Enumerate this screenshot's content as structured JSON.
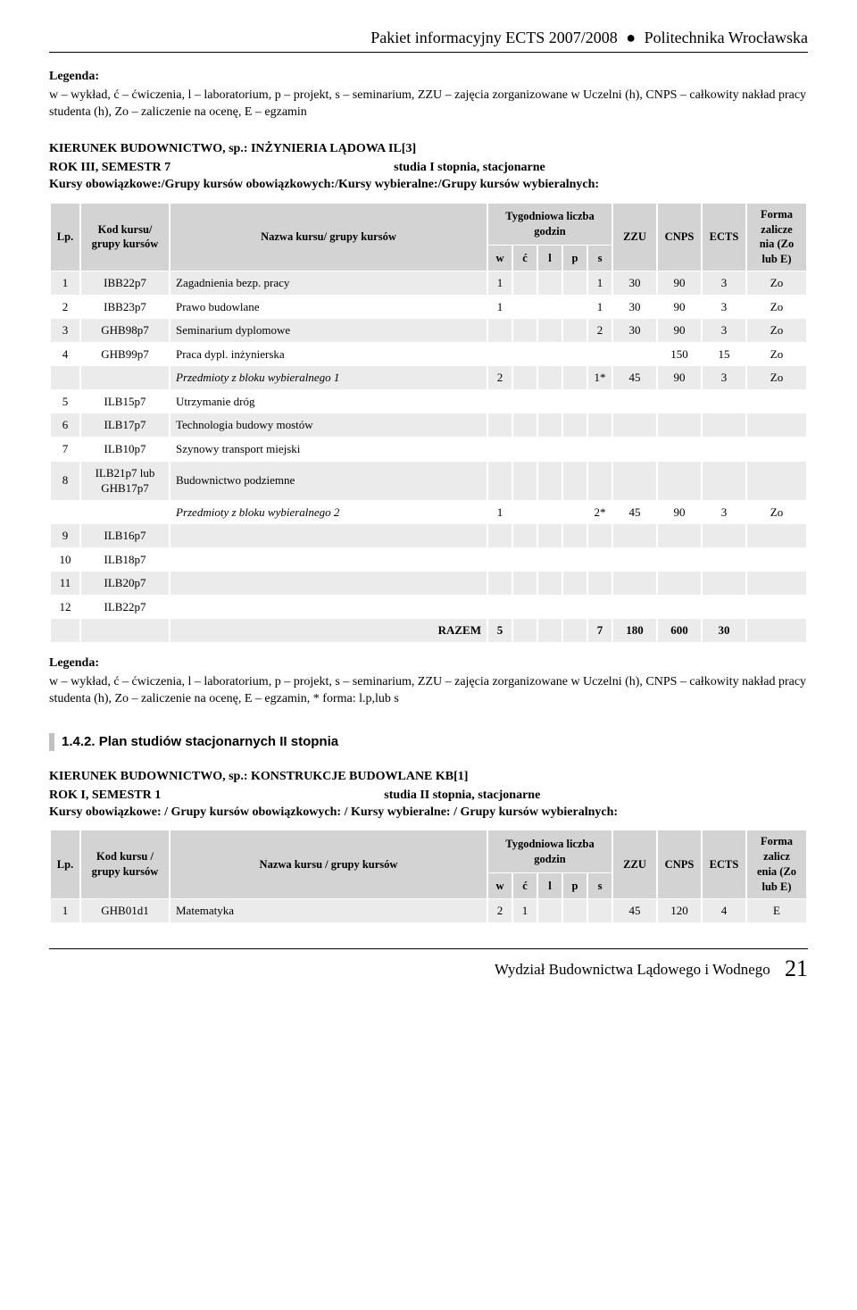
{
  "header": {
    "left": "Pakiet informacyjny ECTS 2007/2008",
    "bullet": "●",
    "right": "Politechnika Wrocławska"
  },
  "legend1": {
    "title": "Legenda:",
    "text": "w – wykład, ć – ćwiczenia, l – laboratorium, p – projekt, s – seminarium, ZZU – zajęcia zorganizowane w Uczelni (h), CNPS – całkowity nakład pracy studenta (h), Zo – zaliczenie na ocenę, E – egzamin"
  },
  "block1": {
    "kier": "KIERUNEK BUDOWNICTWO, sp.: INŻYNIERIA LĄDOWA IL[3]",
    "rok": "ROK III, SEMESTR 7",
    "studia": "studia I stopnia, stacjonarne",
    "kursy": "Kursy obowiązkowe:/Grupy kursów obowiązkowych:/Kursy wybieralne:/Grupy kursów wybieralnych:"
  },
  "table1": {
    "headers": {
      "lp": "Lp.",
      "kod": "Kod kursu/ grupy kursów",
      "name": "Nazwa kursu/ grupy kursów",
      "tyg": "Tygodniowa liczba godzin",
      "w": "w",
      "c": "ć",
      "l": "l",
      "p": "p",
      "s": "s",
      "zzu": "ZZU",
      "cnps": "CNPS",
      "ects": "ECTS",
      "forma": "Forma zalicze nia (Zo lub E)"
    },
    "rows": [
      {
        "lp": "1",
        "kod": "IBB22p7",
        "name": "Zagadnienia bezp. pracy",
        "w": "1",
        "c": "",
        "l": "",
        "p": "",
        "s": "1",
        "zzu": "30",
        "cnps": "90",
        "ects": "3",
        "forma": "Zo"
      },
      {
        "lp": "2",
        "kod": "IBB23p7",
        "name": "Prawo budowlane",
        "w": "1",
        "c": "",
        "l": "",
        "p": "",
        "s": "1",
        "zzu": "30",
        "cnps": "90",
        "ects": "3",
        "forma": "Zo"
      },
      {
        "lp": "3",
        "kod": "GHB98p7",
        "name": "Seminarium dyplomowe",
        "w": "",
        "c": "",
        "l": "",
        "p": "",
        "s": "2",
        "zzu": "30",
        "cnps": "90",
        "ects": "3",
        "forma": "Zo"
      },
      {
        "lp": "4",
        "kod": "GHB99p7",
        "name": "Praca dypl. inżynierska",
        "w": "",
        "c": "",
        "l": "",
        "p": "",
        "s": "",
        "zzu": "",
        "cnps": "150",
        "ects": "15",
        "forma": "Zo"
      },
      {
        "lp": "",
        "kod": "",
        "name": "Przedmioty z bloku wybieralnego 1",
        "italic": true,
        "w": "2",
        "c": "",
        "l": "",
        "p": "",
        "s": "1*",
        "zzu": "45",
        "cnps": "90",
        "ects": "3",
        "forma": "Zo"
      },
      {
        "lp": "5",
        "kod": "ILB15p7",
        "name": "Utrzymanie dróg",
        "w": "",
        "c": "",
        "l": "",
        "p": "",
        "s": "",
        "zzu": "",
        "cnps": "",
        "ects": "",
        "forma": ""
      },
      {
        "lp": "6",
        "kod": "ILB17p7",
        "name": "Technologia budowy mostów",
        "w": "",
        "c": "",
        "l": "",
        "p": "",
        "s": "",
        "zzu": "",
        "cnps": "",
        "ects": "",
        "forma": ""
      },
      {
        "lp": "7",
        "kod": "ILB10p7",
        "name": "Szynowy transport miejski",
        "w": "",
        "c": "",
        "l": "",
        "p": "",
        "s": "",
        "zzu": "",
        "cnps": "",
        "ects": "",
        "forma": ""
      },
      {
        "lp": "8",
        "kod": "ILB21p7 lub GHB17p7",
        "name": "Budownictwo podziemne",
        "w": "",
        "c": "",
        "l": "",
        "p": "",
        "s": "",
        "zzu": "",
        "cnps": "",
        "ects": "",
        "forma": ""
      },
      {
        "lp": "",
        "kod": "",
        "name": "Przedmioty z bloku wybieralnego 2",
        "italic": true,
        "w": "1",
        "c": "",
        "l": "",
        "p": "",
        "s": "2*",
        "zzu": "45",
        "cnps": "90",
        "ects": "3",
        "forma": "Zo"
      },
      {
        "lp": "9",
        "kod": "ILB16p7",
        "name": "",
        "w": "",
        "c": "",
        "l": "",
        "p": "",
        "s": "",
        "zzu": "",
        "cnps": "",
        "ects": "",
        "forma": ""
      },
      {
        "lp": "10",
        "kod": "ILB18p7",
        "name": "",
        "w": "",
        "c": "",
        "l": "",
        "p": "",
        "s": "",
        "zzu": "",
        "cnps": "",
        "ects": "",
        "forma": ""
      },
      {
        "lp": "11",
        "kod": "ILB20p7",
        "name": "",
        "w": "",
        "c": "",
        "l": "",
        "p": "",
        "s": "",
        "zzu": "",
        "cnps": "",
        "ects": "",
        "forma": ""
      },
      {
        "lp": "12",
        "kod": "ILB22p7",
        "name": "",
        "w": "",
        "c": "",
        "l": "",
        "p": "",
        "s": "",
        "zzu": "",
        "cnps": "",
        "ects": "",
        "forma": ""
      }
    ],
    "razem": {
      "label": "RAZEM",
      "w": "5",
      "c": "",
      "l": "",
      "p": "",
      "s": "7",
      "zzu": "180",
      "cnps": "600",
      "ects": "30",
      "forma": ""
    }
  },
  "legend2": {
    "title": "Legenda:",
    "text": "w – wykład, ć – ćwiczenia, l – laboratorium, p – projekt, s – seminarium, ZZU – zajęcia zorganizowane w Uczelni (h), CNPS – całkowity nakład pracy studenta (h), Zo – zaliczenie na ocenę, E – egzamin, * forma: l.p,lub s"
  },
  "section_heading": "1.4.2. Plan studiów stacjonarnych II stopnia",
  "block2": {
    "kier": "KIERUNEK BUDOWNICTWO, sp.: KONSTRUKCJE BUDOWLANE KB[1]",
    "rok": "ROK I, SEMESTR 1",
    "studia": "studia II stopnia, stacjonarne",
    "kursy": "Kursy obowiązkowe: / Grupy kursów obowiązkowych: / Kursy wybieralne: / Grupy kursów wybieralnych:"
  },
  "table2": {
    "headers": {
      "lp": "Lp.",
      "kod": "Kod kursu / grupy kursów",
      "name": "Nazwa kursu / grupy kursów",
      "tyg": "Tygodniowa liczba godzin",
      "w": "w",
      "c": "ć",
      "l": "l",
      "p": "p",
      "s": "s",
      "zzu": "ZZU",
      "cnps": "CNPS",
      "ects": "ECTS",
      "forma": "Forma zalicz enia (Zo lub E)"
    },
    "rows": [
      {
        "lp": "1",
        "kod": "GHB01d1",
        "name": "Matematyka",
        "w": "2",
        "c": "1",
        "l": "",
        "p": "",
        "s": "",
        "zzu": "45",
        "cnps": "120",
        "ects": "4",
        "forma": "E"
      }
    ]
  },
  "footer": {
    "text": "Wydział Budownictwa Lądowego i Wodnego",
    "page": "21"
  }
}
